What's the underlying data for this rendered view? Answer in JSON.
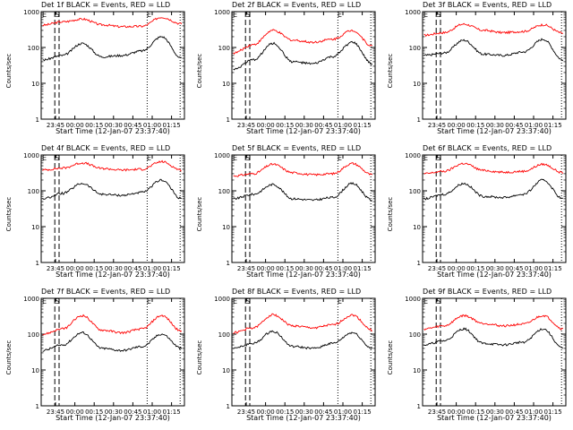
{
  "chart_data": [
    {
      "type": "line",
      "title": "Det 1f BLACK = Events, RED = LLD",
      "xlabel": "Start Time (12-Jan-07 23:37:40)",
      "ylabel": "Counts/sec",
      "yscale": "log",
      "ylim": [
        1,
        1000
      ],
      "x_ticks": [
        "23:45",
        "00:00",
        "00:15",
        "00:30",
        "00:45",
        "01:00",
        "01:15"
      ],
      "y_ticks": [
        "1",
        "10",
        "100",
        "1000"
      ],
      "markers": [
        "S",
        "E"
      ],
      "series": [
        {
          "name": "LLD",
          "color": "#ff0000",
          "values": [
            420,
            520,
            620,
            430,
            380,
            390,
            700,
            460
          ]
        },
        {
          "name": "Events",
          "color": "#000000",
          "values": [
            45,
            60,
            130,
            55,
            60,
            80,
            200,
            50
          ]
        }
      ]
    },
    {
      "type": "line",
      "title": "Det 2f BLACK = Events, RED = LLD",
      "xlabel": "Start Time (12-Jan-07 23:37:40)",
      "ylabel": "Counts/sec",
      "yscale": "log",
      "ylim": [
        1,
        1000
      ],
      "x_ticks": [
        "23:45",
        "00:00",
        "00:15",
        "00:30",
        "00:45",
        "01:00",
        "01:15"
      ],
      "y_ticks": [
        "1",
        "10",
        "100",
        "1000"
      ],
      "markers": [
        "S",
        "E"
      ],
      "series": [
        {
          "name": "LLD",
          "color": "#ff0000",
          "values": [
            70,
            120,
            300,
            160,
            140,
            170,
            300,
            110
          ]
        },
        {
          "name": "Events",
          "color": "#000000",
          "values": [
            25,
            45,
            130,
            40,
            35,
            55,
            140,
            35
          ]
        }
      ]
    },
    {
      "type": "line",
      "title": "Det 3f BLACK = Events, RED = LLD",
      "xlabel": "Start Time (12-Jan-07 23:37:40)",
      "ylabel": "Counts/sec",
      "yscale": "log",
      "ylim": [
        1,
        1000
      ],
      "x_ticks": [
        "23:45",
        "00:00",
        "00:15",
        "00:30",
        "00:45",
        "01:00",
        "01:15"
      ],
      "y_ticks": [
        "1",
        "10",
        "100",
        "1000"
      ],
      "markers": [
        "S"
      ],
      "series": [
        {
          "name": "LLD",
          "color": "#ff0000",
          "values": [
            220,
            260,
            450,
            300,
            260,
            280,
            430,
            250
          ]
        },
        {
          "name": "Events",
          "color": "#000000",
          "values": [
            60,
            70,
            160,
            65,
            60,
            75,
            170,
            45
          ]
        }
      ]
    },
    {
      "type": "line",
      "title": "Det 4f BLACK = Events, RED = LLD",
      "xlabel": "Start Time (12-Jan-07 23:37:40)",
      "ylabel": "Counts/sec",
      "yscale": "log",
      "ylim": [
        1,
        1000
      ],
      "x_ticks": [
        "23:45",
        "00:00",
        "00:15",
        "00:30",
        "00:45",
        "01:00",
        "01:15"
      ],
      "y_ticks": [
        "1",
        "10",
        "100",
        "1000"
      ],
      "markers": [
        "S",
        "E"
      ],
      "series": [
        {
          "name": "LLD",
          "color": "#ff0000",
          "values": [
            380,
            430,
            600,
            420,
            380,
            400,
            650,
            380
          ]
        },
        {
          "name": "Events",
          "color": "#000000",
          "values": [
            60,
            85,
            160,
            80,
            75,
            90,
            200,
            60
          ]
        }
      ]
    },
    {
      "type": "line",
      "title": "Det 5f BLACK = Events, RED = LLD",
      "xlabel": "Start Time (12-Jan-07 23:37:40)",
      "ylabel": "Counts/sec",
      "yscale": "log",
      "ylim": [
        1,
        1000
      ],
      "x_ticks": [
        "23:45",
        "00:00",
        "00:15",
        "00:30",
        "00:45",
        "01:00",
        "01:15"
      ],
      "y_ticks": [
        "1",
        "10",
        "100",
        "1000"
      ],
      "markers": [
        "S",
        "E"
      ],
      "series": [
        {
          "name": "LLD",
          "color": "#ff0000",
          "values": [
            260,
            300,
            550,
            320,
            280,
            300,
            580,
            280
          ]
        },
        {
          "name": "Events",
          "color": "#000000",
          "values": [
            60,
            80,
            150,
            60,
            55,
            65,
            160,
            55
          ]
        }
      ]
    },
    {
      "type": "line",
      "title": "Det 6f BLACK = Events, RED = LLD",
      "xlabel": "Start Time (12-Jan-07 23:37:40)",
      "ylabel": "Counts/sec",
      "yscale": "log",
      "ylim": [
        1,
        1000
      ],
      "x_ticks": [
        "23:45",
        "00:00",
        "00:15",
        "00:30",
        "00:45",
        "01:00",
        "01:15"
      ],
      "y_ticks": [
        "1",
        "10",
        "100",
        "1000"
      ],
      "markers": [
        "S"
      ],
      "series": [
        {
          "name": "LLD",
          "color": "#ff0000",
          "values": [
            300,
            350,
            580,
            370,
            330,
            350,
            550,
            320
          ]
        },
        {
          "name": "Events",
          "color": "#000000",
          "values": [
            60,
            80,
            160,
            70,
            65,
            80,
            200,
            60
          ]
        }
      ]
    },
    {
      "type": "line",
      "title": "Det 7f BLACK = Events, RED = LLD",
      "xlabel": "Start Time (12-Jan-07 23:37:40)",
      "ylabel": "Counts/sec",
      "yscale": "log",
      "ylim": [
        1,
        1000
      ],
      "x_ticks": [
        "23:45",
        "00:00",
        "00:15",
        "00:30",
        "00:45",
        "01:00",
        "01:15"
      ],
      "y_ticks": [
        "1",
        "10",
        "100",
        "1000"
      ],
      "markers": [
        "S",
        "E"
      ],
      "series": [
        {
          "name": "LLD",
          "color": "#ff0000",
          "values": [
            100,
            140,
            330,
            130,
            110,
            140,
            330,
            120
          ]
        },
        {
          "name": "Events",
          "color": "#000000",
          "values": [
            35,
            50,
            110,
            40,
            35,
            45,
            100,
            40
          ]
        }
      ]
    },
    {
      "type": "line",
      "title": "Det 8f BLACK = Events, RED = LLD",
      "xlabel": "Start Time (12-Jan-07 23:37:40)",
      "ylabel": "Counts/sec",
      "yscale": "log",
      "ylim": [
        1,
        1000
      ],
      "x_ticks": [
        "23:45",
        "00:00",
        "00:15",
        "00:30",
        "00:45",
        "01:00",
        "01:15"
      ],
      "y_ticks": [
        "1",
        "10",
        "100",
        "1000"
      ],
      "markers": [
        "S",
        "E"
      ],
      "series": [
        {
          "name": "LLD",
          "color": "#ff0000",
          "values": [
            110,
            150,
            350,
            170,
            150,
            180,
            340,
            130
          ]
        },
        {
          "name": "Events",
          "color": "#000000",
          "values": [
            40,
            55,
            120,
            45,
            40,
            55,
            110,
            40
          ]
        }
      ]
    },
    {
      "type": "line",
      "title": "Det 9f BLACK = Events, RED = LLD",
      "xlabel": "Start Time (12-Jan-07 23:37:40)",
      "ylabel": "Counts/sec",
      "yscale": "log",
      "ylim": [
        1,
        1000
      ],
      "x_ticks": [
        "23:45",
        "00:00",
        "00:15",
        "00:30",
        "00:45",
        "01:00",
        "01:15"
      ],
      "y_ticks": [
        "1",
        "10",
        "100",
        "1000"
      ],
      "markers": [
        "S"
      ],
      "series": [
        {
          "name": "LLD",
          "color": "#ff0000",
          "values": [
            140,
            170,
            330,
            200,
            170,
            190,
            330,
            140
          ]
        },
        {
          "name": "Events",
          "color": "#000000",
          "values": [
            50,
            65,
            140,
            55,
            50,
            60,
            140,
            40
          ]
        }
      ]
    }
  ]
}
